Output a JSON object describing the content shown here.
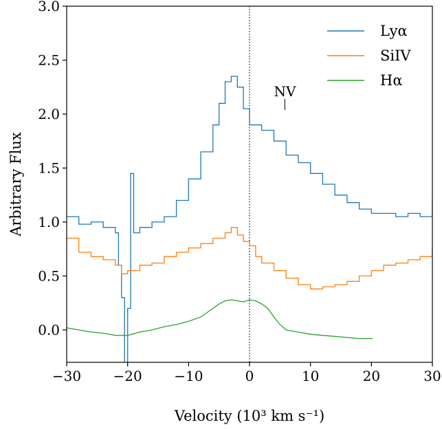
{
  "chart_data": {
    "type": "line",
    "title": "",
    "xlabel": "Velocity (10³ km s⁻¹)",
    "ylabel": "Arbitrary Flux",
    "xlim": [
      -30,
      30
    ],
    "ylim": [
      -0.3,
      3.0
    ],
    "xticks": [
      -30,
      -20,
      -10,
      0,
      10,
      20,
      30
    ],
    "yticks": [
      0.0,
      0.5,
      1.0,
      1.5,
      2.0,
      2.5,
      3.0
    ],
    "xtick_labels": [
      "−30",
      "−20",
      "−10",
      "0",
      "10",
      "20",
      "30"
    ],
    "ytick_labels": [
      "0.0",
      "0.5",
      "1.0",
      "1.5",
      "2.0",
      "2.5",
      "3.0"
    ],
    "grid": false,
    "legend_position": "top-right",
    "vline": {
      "x": 0,
      "style": "dotted",
      "color": "#000000"
    },
    "annotation": {
      "text": "NV",
      "x": 5.8,
      "y": 2.05
    },
    "series": [
      {
        "name": "Lyα",
        "color": "#1f77b4",
        "step": true,
        "x": [
          -30,
          -28,
          -26,
          -24,
          -22,
          -21.5,
          -21,
          -20.5,
          -20,
          -19.5,
          -19,
          -18,
          -16,
          -14,
          -12,
          -10,
          -8,
          -6,
          -5,
          -4,
          -3,
          -2,
          -1,
          0,
          1,
          2,
          4,
          6,
          8,
          10,
          12,
          14,
          16,
          18,
          20,
          22,
          24,
          26,
          28,
          30
        ],
        "y": [
          1.05,
          0.98,
          1.0,
          0.95,
          0.9,
          0.6,
          0.3,
          -0.35,
          0.2,
          1.45,
          0.9,
          0.95,
          1.0,
          1.05,
          1.2,
          1.4,
          1.65,
          1.9,
          2.1,
          2.3,
          2.35,
          2.25,
          2.05,
          1.9,
          1.9,
          1.85,
          1.75,
          1.62,
          1.55,
          1.45,
          1.35,
          1.25,
          1.18,
          1.12,
          1.08,
          1.08,
          1.05,
          1.08,
          1.05,
          1.22
        ]
      },
      {
        "name": "SiIV",
        "color": "#ff7f0e",
        "step": true,
        "x": [
          -30,
          -28,
          -26,
          -24,
          -22,
          -21,
          -20,
          -18,
          -16,
          -14,
          -12,
          -10,
          -8,
          -6,
          -4,
          -3,
          -2,
          -1,
          0,
          1,
          2,
          4,
          6,
          8,
          10,
          12,
          14,
          16,
          18,
          20,
          22,
          24,
          26,
          28,
          30
        ],
        "y": [
          0.85,
          0.72,
          0.68,
          0.65,
          0.6,
          0.52,
          0.55,
          0.6,
          0.62,
          0.68,
          0.72,
          0.76,
          0.8,
          0.85,
          0.9,
          0.95,
          0.88,
          0.82,
          0.78,
          0.68,
          0.62,
          0.55,
          0.48,
          0.42,
          0.38,
          0.4,
          0.42,
          0.45,
          0.5,
          0.55,
          0.6,
          0.62,
          0.65,
          0.68,
          0.75
        ]
      },
      {
        "name": "Hα",
        "color": "#2ca02c",
        "step": false,
        "x": [
          -30,
          -28,
          -26,
          -24,
          -22,
          -20,
          -18,
          -16,
          -14,
          -12,
          -10,
          -8,
          -6,
          -5,
          -4,
          -3,
          -2,
          -1,
          0,
          1,
          2,
          3,
          4,
          5,
          6,
          8,
          10,
          12,
          14,
          16,
          18,
          20.2
        ],
        "y": [
          0.02,
          0.0,
          -0.02,
          -0.03,
          -0.05,
          -0.05,
          -0.02,
          0.0,
          0.03,
          0.05,
          0.08,
          0.12,
          0.2,
          0.24,
          0.27,
          0.28,
          0.27,
          0.26,
          0.28,
          0.27,
          0.24,
          0.2,
          0.12,
          0.05,
          0.0,
          -0.02,
          -0.04,
          -0.05,
          -0.06,
          -0.07,
          -0.08,
          -0.08
        ]
      }
    ]
  }
}
